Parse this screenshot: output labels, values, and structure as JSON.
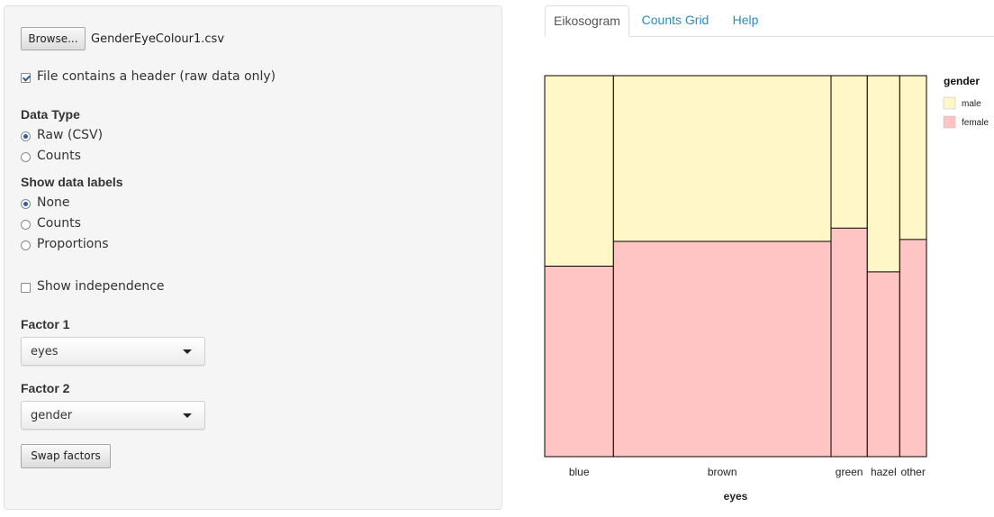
{
  "controls": {
    "browse_label": "Browse...",
    "file_name": "GenderEyeColour1.csv",
    "header_checkbox_label": "File contains a header (raw data only)",
    "header_checked": true,
    "data_type": {
      "title": "Data Type",
      "options": [
        "Raw (CSV)",
        "Counts"
      ],
      "selected": "Raw (CSV)"
    },
    "show_labels": {
      "title": "Show data labels",
      "options": [
        "None",
        "Counts",
        "Proportions"
      ],
      "selected": "None"
    },
    "independence_label": "Show independence",
    "independence_checked": false,
    "factor1": {
      "title": "Factor 1",
      "value": "eyes"
    },
    "factor2": {
      "title": "Factor 2",
      "value": "gender"
    },
    "swap_label": "Swap factors"
  },
  "tabs": [
    {
      "label": "Eikosogram",
      "active": true
    },
    {
      "label": "Counts Grid",
      "active": false
    },
    {
      "label": "Help",
      "active": false
    }
  ],
  "colors": {
    "male": "#fff7c7",
    "female": "#ffc5c5",
    "link": "#2a8cbf",
    "radio_accent": "#2a5da8"
  },
  "chart_data": {
    "type": "eikosogram",
    "xlabel": "eyes",
    "legend_title": "gender",
    "categories": [
      "blue",
      "brown",
      "green",
      "hazel",
      "other"
    ],
    "category_proportions": [
      0.18,
      0.57,
      0.095,
      0.085,
      0.07
    ],
    "series": [
      {
        "name": "female",
        "values": [
          0.5,
          0.565,
          0.6,
          0.485,
          0.57
        ]
      },
      {
        "name": "male",
        "values": [
          0.5,
          0.435,
          0.4,
          0.515,
          0.43
        ]
      }
    ],
    "legend_entries": [
      "male",
      "female"
    ],
    "legend_placement": "right",
    "grid": false
  }
}
